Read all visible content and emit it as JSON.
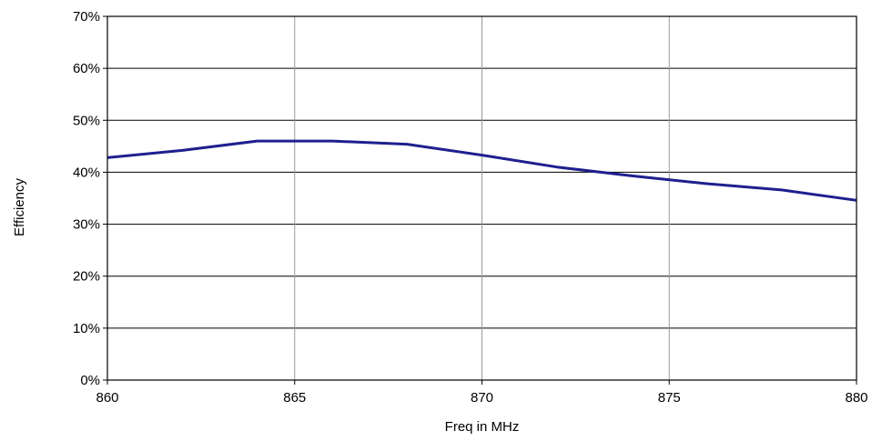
{
  "chart_data": {
    "type": "line",
    "title": "",
    "xlabel": "Freq in MHz",
    "ylabel": "Efficiency",
    "xlim": [
      860,
      880
    ],
    "ylim": [
      0,
      70
    ],
    "x_ticks": [
      860,
      865,
      870,
      875,
      880
    ],
    "x_tick_labels": [
      "860",
      "865",
      "870",
      "875",
      "880"
    ],
    "y_ticks": [
      0,
      10,
      20,
      30,
      40,
      50,
      60,
      70
    ],
    "y_tick_labels": [
      "0%",
      "10%",
      "20%",
      "30%",
      "40%",
      "50%",
      "60%",
      "70%"
    ],
    "grid": true,
    "legend": "none",
    "series": [
      {
        "color": "#1f1f8f",
        "x": [
          860,
          862,
          864,
          866,
          868,
          870,
          872,
          874,
          876,
          878,
          880
        ],
        "y": [
          42.8,
          44.2,
          46.0,
          46.0,
          45.4,
          43.3,
          41.0,
          39.3,
          37.8,
          36.6,
          34.6
        ]
      }
    ]
  }
}
